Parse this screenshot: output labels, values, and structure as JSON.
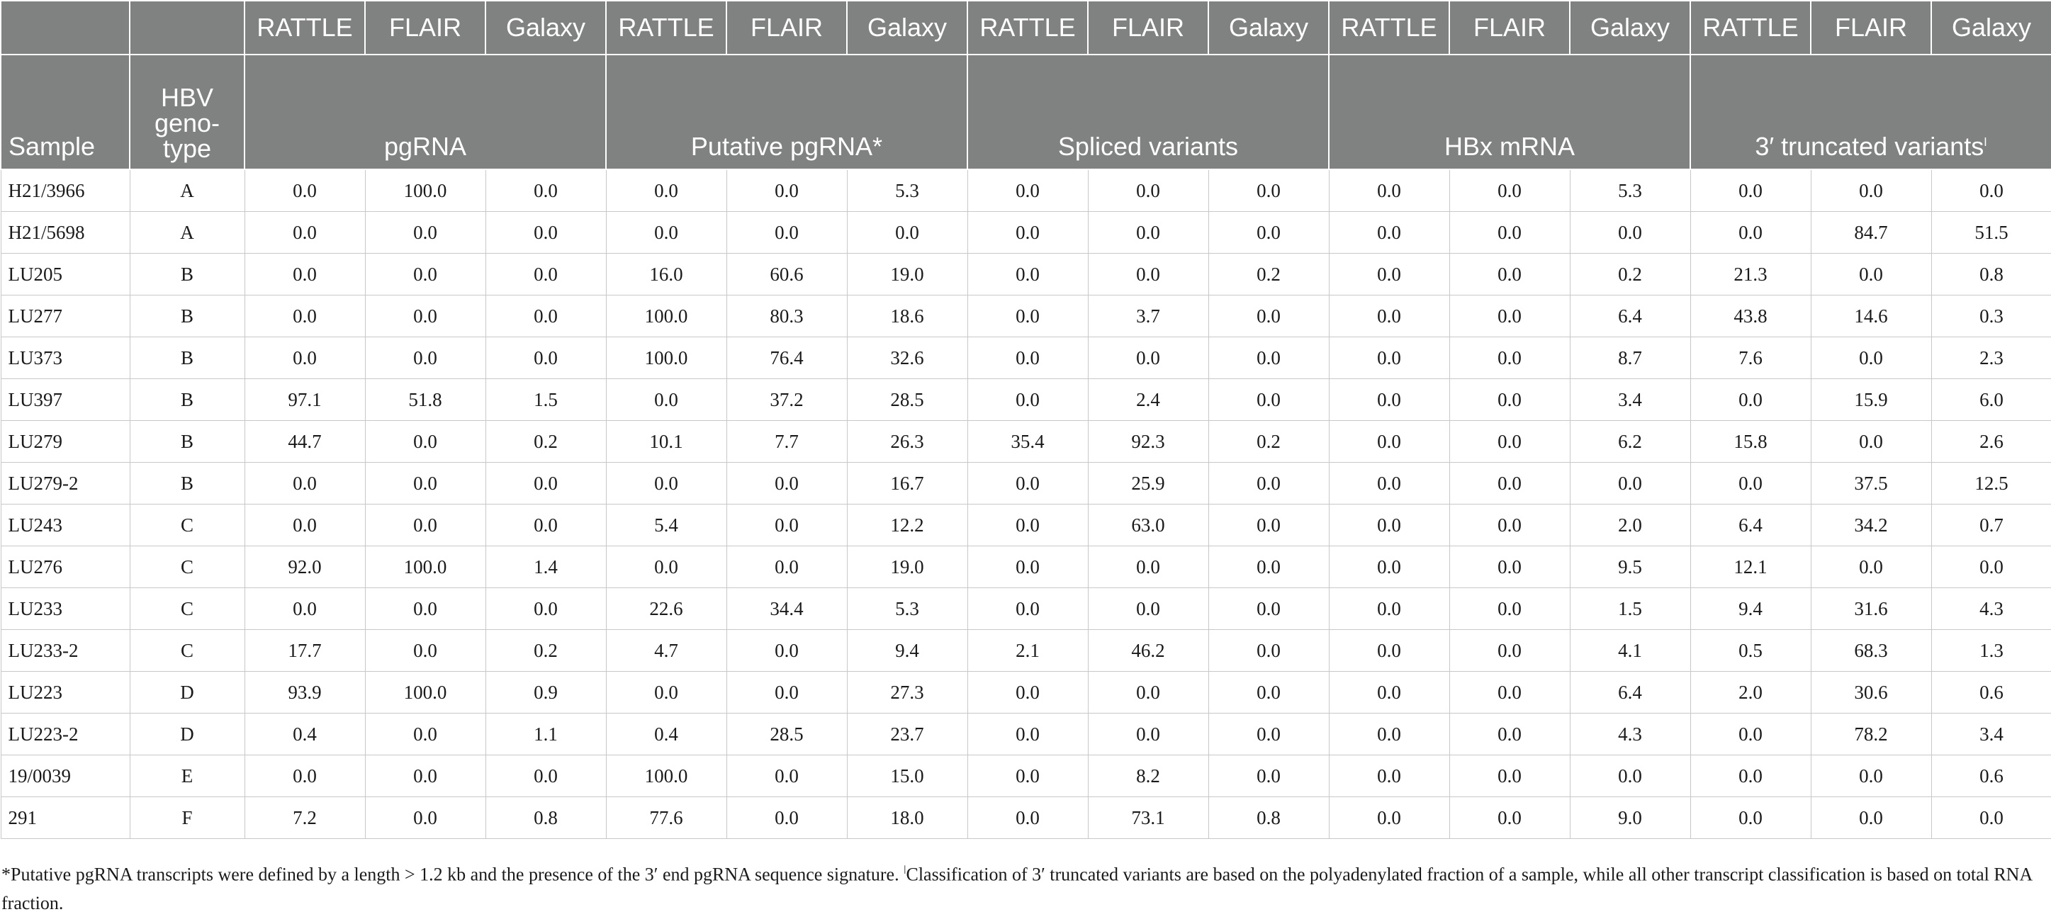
{
  "header": {
    "methods": [
      "RATTLE",
      "FLAIR",
      "Galaxy"
    ],
    "sample_label": "Sample",
    "genotype_label": "HBV geno-type",
    "genotype_line1": "HBV",
    "genotype_line2": "geno-",
    "genotype_line3": "type",
    "groups": [
      {
        "label": "pgRNA",
        "mark": ""
      },
      {
        "label": "Putative pgRNA*",
        "mark": ""
      },
      {
        "label": "Spliced variants",
        "mark": ""
      },
      {
        "label": "HBx mRNA",
        "mark": ""
      },
      {
        "label": "3′ truncated variants",
        "mark": "ǀ"
      }
    ]
  },
  "rows": [
    {
      "sample": "H21/3966",
      "genotype": "A",
      "values": [
        "0.0",
        "100.0",
        "0.0",
        "0.0",
        "0.0",
        "5.3",
        "0.0",
        "0.0",
        "0.0",
        "0.0",
        "0.0",
        "5.3",
        "0.0",
        "0.0",
        "0.0"
      ]
    },
    {
      "sample": "H21/5698",
      "genotype": "A",
      "values": [
        "0.0",
        "0.0",
        "0.0",
        "0.0",
        "0.0",
        "0.0",
        "0.0",
        "0.0",
        "0.0",
        "0.0",
        "0.0",
        "0.0",
        "0.0",
        "84.7",
        "51.5"
      ]
    },
    {
      "sample": "LU205",
      "genotype": "B",
      "values": [
        "0.0",
        "0.0",
        "0.0",
        "16.0",
        "60.6",
        "19.0",
        "0.0",
        "0.0",
        "0.2",
        "0.0",
        "0.0",
        "0.2",
        "21.3",
        "0.0",
        "0.8"
      ]
    },
    {
      "sample": "LU277",
      "genotype": "B",
      "values": [
        "0.0",
        "0.0",
        "0.0",
        "100.0",
        "80.3",
        "18.6",
        "0.0",
        "3.7",
        "0.0",
        "0.0",
        "0.0",
        "6.4",
        "43.8",
        "14.6",
        "0.3"
      ]
    },
    {
      "sample": "LU373",
      "genotype": "B",
      "values": [
        "0.0",
        "0.0",
        "0.0",
        "100.0",
        "76.4",
        "32.6",
        "0.0",
        "0.0",
        "0.0",
        "0.0",
        "0.0",
        "8.7",
        "7.6",
        "0.0",
        "2.3"
      ]
    },
    {
      "sample": "LU397",
      "genotype": "B",
      "values": [
        "97.1",
        "51.8",
        "1.5",
        "0.0",
        "37.2",
        "28.5",
        "0.0",
        "2.4",
        "0.0",
        "0.0",
        "0.0",
        "3.4",
        "0.0",
        "15.9",
        "6.0"
      ]
    },
    {
      "sample": "LU279",
      "genotype": "B",
      "values": [
        "44.7",
        "0.0",
        "0.2",
        "10.1",
        "7.7",
        "26.3",
        "35.4",
        "92.3",
        "0.2",
        "0.0",
        "0.0",
        "6.2",
        "15.8",
        "0.0",
        "2.6"
      ]
    },
    {
      "sample": "LU279-2",
      "genotype": "B",
      "values": [
        "0.0",
        "0.0",
        "0.0",
        "0.0",
        "0.0",
        "16.7",
        "0.0",
        "25.9",
        "0.0",
        "0.0",
        "0.0",
        "0.0",
        "0.0",
        "37.5",
        "12.5"
      ]
    },
    {
      "sample": "LU243",
      "genotype": "C",
      "values": [
        "0.0",
        "0.0",
        "0.0",
        "5.4",
        "0.0",
        "12.2",
        "0.0",
        "63.0",
        "0.0",
        "0.0",
        "0.0",
        "2.0",
        "6.4",
        "34.2",
        "0.7"
      ]
    },
    {
      "sample": "LU276",
      "genotype": "C",
      "values": [
        "92.0",
        "100.0",
        "1.4",
        "0.0",
        "0.0",
        "19.0",
        "0.0",
        "0.0",
        "0.0",
        "0.0",
        "0.0",
        "9.5",
        "12.1",
        "0.0",
        "0.0"
      ]
    },
    {
      "sample": "LU233",
      "genotype": "C",
      "values": [
        "0.0",
        "0.0",
        "0.0",
        "22.6",
        "34.4",
        "5.3",
        "0.0",
        "0.0",
        "0.0",
        "0.0",
        "0.0",
        "1.5",
        "9.4",
        "31.6",
        "4.3"
      ]
    },
    {
      "sample": "LU233-2",
      "genotype": "C",
      "values": [
        "17.7",
        "0.0",
        "0.2",
        "4.7",
        "0.0",
        "9.4",
        "2.1",
        "46.2",
        "0.0",
        "0.0",
        "0.0",
        "4.1",
        "0.5",
        "68.3",
        "1.3"
      ]
    },
    {
      "sample": "LU223",
      "genotype": "D",
      "values": [
        "93.9",
        "100.0",
        "0.9",
        "0.0",
        "0.0",
        "27.3",
        "0.0",
        "0.0",
        "0.0",
        "0.0",
        "0.0",
        "6.4",
        "2.0",
        "30.6",
        "0.6"
      ]
    },
    {
      "sample": "LU223-2",
      "genotype": "D",
      "values": [
        "0.4",
        "0.0",
        "1.1",
        "0.4",
        "28.5",
        "23.7",
        "0.0",
        "0.0",
        "0.0",
        "0.0",
        "0.0",
        "4.3",
        "0.0",
        "78.2",
        "3.4"
      ]
    },
    {
      "sample": "19/0039",
      "genotype": "E",
      "values": [
        "0.0",
        "0.0",
        "0.0",
        "100.0",
        "0.0",
        "15.0",
        "0.0",
        "8.2",
        "0.0",
        "0.0",
        "0.0",
        "0.0",
        "0.0",
        "0.0",
        "0.6"
      ]
    },
    {
      "sample": "291",
      "genotype": "F",
      "values": [
        "7.2",
        "0.0",
        "0.8",
        "77.6",
        "0.0",
        "18.0",
        "0.0",
        "73.1",
        "0.8",
        "0.0",
        "0.0",
        "9.0",
        "0.0",
        "0.0",
        "0.0"
      ]
    }
  ],
  "footnote": {
    "part1": "*Putative pgRNA transcripts were defined by a length > 1.2 kb and the presence of the 3′ end pgRNA sequence signature. ",
    "mark": "ǀ",
    "part2": "Classification of 3′ truncated variants are based on the polyadenylated fraction of a sample, while all other transcript classification is based on total RNA fraction."
  }
}
